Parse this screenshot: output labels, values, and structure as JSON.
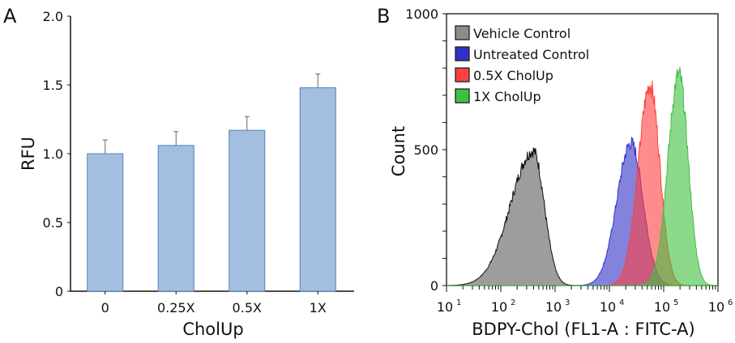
{
  "chart_data": [
    {
      "panel_label": "A",
      "type": "bar",
      "title": "",
      "xlabel": "CholUp",
      "ylabel": "RFU",
      "categories": [
        "0",
        "0.25X",
        "0.5X",
        "1X"
      ],
      "values": [
        1.0,
        1.06,
        1.17,
        1.48
      ],
      "error_upper": [
        0.1,
        0.1,
        0.1,
        0.1
      ],
      "ylim": [
        0,
        2.0
      ],
      "yticks": [
        0,
        0.5,
        1.0,
        1.5,
        2.0
      ],
      "ytick_labels": [
        "0",
        "0.5",
        "1.0",
        "1.5",
        "2.0"
      ],
      "bar_color": "#a3bedf",
      "bar_edge": "#4f81bd",
      "grid": false
    },
    {
      "panel_label": "B",
      "type": "area",
      "title": "",
      "xlabel": "BDPY-Chol (FL1-A : FITC-A)",
      "ylabel": "Count",
      "xscale": "log",
      "xlim_log10": [
        1,
        6
      ],
      "xtick_labels": [
        "10",
        "10",
        "10",
        "10",
        "10",
        "10"
      ],
      "xtick_exponents": [
        "1",
        "2",
        "3",
        "4",
        "5",
        "6"
      ],
      "ylim": [
        0,
        1000
      ],
      "yticks": [
        0,
        500,
        1000
      ],
      "ytick_labels": [
        "0",
        "500",
        "1000"
      ],
      "legend_position": "top-left",
      "grid": false,
      "series": [
        {
          "name": "Vehicle Control",
          "color": "#8c8c8c",
          "peak_log10": 2.6,
          "peak_count": 500,
          "sd_left": 0.42,
          "sd_right": 0.2
        },
        {
          "name": "Untreated Control",
          "color": "#3030c8",
          "peak_log10": 4.4,
          "peak_count": 530,
          "sd_left": 0.26,
          "sd_right": 0.22
        },
        {
          "name": "0.5X CholUp",
          "color": "#ff4040",
          "peak_log10": 4.75,
          "peak_count": 745,
          "sd_left": 0.22,
          "sd_right": 0.18
        },
        {
          "name": "1X CholUp",
          "color": "#40c040",
          "peak_log10": 5.28,
          "peak_count": 785,
          "sd_left": 0.2,
          "sd_right": 0.17
        }
      ]
    }
  ]
}
